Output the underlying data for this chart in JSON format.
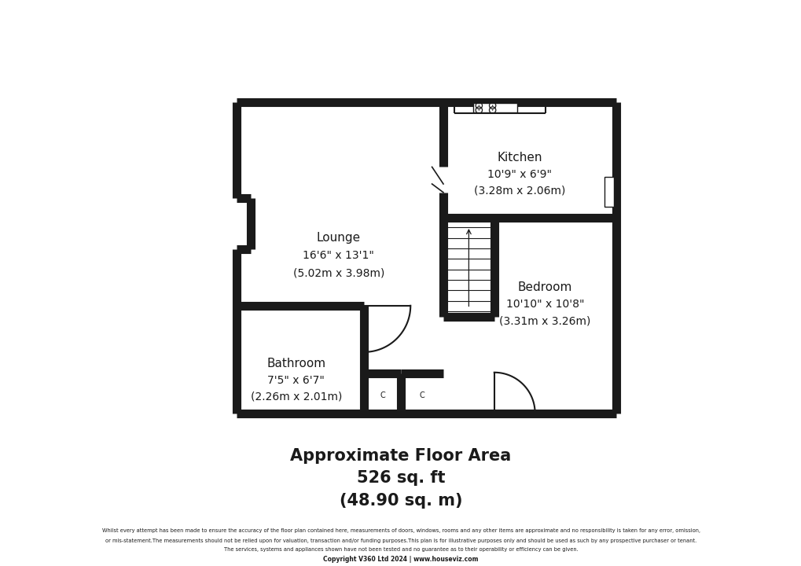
{
  "bg_color": "#ffffff",
  "wall_color": "#1a1a1a",
  "wall_lw": 8,
  "thin_lw": 1.5,
  "text_color": "#1a1a1a",
  "title_line1": "Approximate Floor Area",
  "title_line2": "526 sq. ft",
  "title_line3": "(48.90 sq. m)",
  "footer_line1": "Whilst every attempt has been made to ensure the accuracy of the floor plan contained here, measurements of doors, windows, rooms and any other items are approximate and no responsibility is taken for any error, omission,",
  "footer_line2": "or mis-statement.The measurements should not be relied upon for valuation, transaction and/or funding purposes.This plan is for illustrative purposes only and should be used as such by any prospective purchaser or tenant.",
  "footer_line3": "The services, systems and appliances shown have not been tested and no guarantee as to their operability or efficiency can be given.",
  "footer_line4": "Copyright V360 Ltd 2024 | www.houseviz.com"
}
